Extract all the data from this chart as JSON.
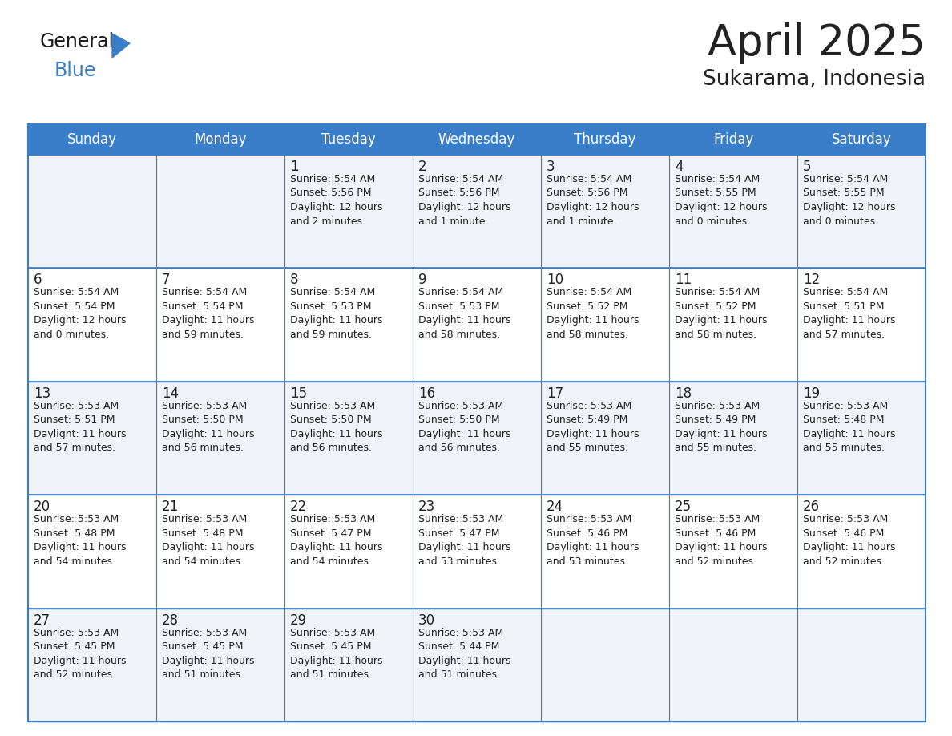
{
  "title": "April 2025",
  "subtitle": "Sukarama, Indonesia",
  "header_bg_color": "#3A7DC9",
  "header_text_color": "#FFFFFF",
  "cell_bg_color_odd": "#F0F4F8",
  "cell_bg_color_even": "#FFFFFF",
  "border_color": "#3A7DC9",
  "row_divider_color": "#3A7DC9",
  "text_color": "#222222",
  "days_of_week": [
    "Sunday",
    "Monday",
    "Tuesday",
    "Wednesday",
    "Thursday",
    "Friday",
    "Saturday"
  ],
  "calendar_data": [
    [
      {
        "day": "",
        "sunrise": "",
        "sunset": "",
        "daylight": ""
      },
      {
        "day": "",
        "sunrise": "",
        "sunset": "",
        "daylight": ""
      },
      {
        "day": "1",
        "sunrise": "5:54 AM",
        "sunset": "5:56 PM",
        "daylight": "12 hours and 2 minutes."
      },
      {
        "day": "2",
        "sunrise": "5:54 AM",
        "sunset": "5:56 PM",
        "daylight": "12 hours and 1 minute."
      },
      {
        "day": "3",
        "sunrise": "5:54 AM",
        "sunset": "5:56 PM",
        "daylight": "12 hours and 1 minute."
      },
      {
        "day": "4",
        "sunrise": "5:54 AM",
        "sunset": "5:55 PM",
        "daylight": "12 hours and 0 minutes."
      },
      {
        "day": "5",
        "sunrise": "5:54 AM",
        "sunset": "5:55 PM",
        "daylight": "12 hours and 0 minutes."
      }
    ],
    [
      {
        "day": "6",
        "sunrise": "5:54 AM",
        "sunset": "5:54 PM",
        "daylight": "12 hours and 0 minutes."
      },
      {
        "day": "7",
        "sunrise": "5:54 AM",
        "sunset": "5:54 PM",
        "daylight": "11 hours and 59 minutes."
      },
      {
        "day": "8",
        "sunrise": "5:54 AM",
        "sunset": "5:53 PM",
        "daylight": "11 hours and 59 minutes."
      },
      {
        "day": "9",
        "sunrise": "5:54 AM",
        "sunset": "5:53 PM",
        "daylight": "11 hours and 58 minutes."
      },
      {
        "day": "10",
        "sunrise": "5:54 AM",
        "sunset": "5:52 PM",
        "daylight": "11 hours and 58 minutes."
      },
      {
        "day": "11",
        "sunrise": "5:54 AM",
        "sunset": "5:52 PM",
        "daylight": "11 hours and 58 minutes."
      },
      {
        "day": "12",
        "sunrise": "5:54 AM",
        "sunset": "5:51 PM",
        "daylight": "11 hours and 57 minutes."
      }
    ],
    [
      {
        "day": "13",
        "sunrise": "5:53 AM",
        "sunset": "5:51 PM",
        "daylight": "11 hours and 57 minutes."
      },
      {
        "day": "14",
        "sunrise": "5:53 AM",
        "sunset": "5:50 PM",
        "daylight": "11 hours and 56 minutes."
      },
      {
        "day": "15",
        "sunrise": "5:53 AM",
        "sunset": "5:50 PM",
        "daylight": "11 hours and 56 minutes."
      },
      {
        "day": "16",
        "sunrise": "5:53 AM",
        "sunset": "5:50 PM",
        "daylight": "11 hours and 56 minutes."
      },
      {
        "day": "17",
        "sunrise": "5:53 AM",
        "sunset": "5:49 PM",
        "daylight": "11 hours and 55 minutes."
      },
      {
        "day": "18",
        "sunrise": "5:53 AM",
        "sunset": "5:49 PM",
        "daylight": "11 hours and 55 minutes."
      },
      {
        "day": "19",
        "sunrise": "5:53 AM",
        "sunset": "5:48 PM",
        "daylight": "11 hours and 55 minutes."
      }
    ],
    [
      {
        "day": "20",
        "sunrise": "5:53 AM",
        "sunset": "5:48 PM",
        "daylight": "11 hours and 54 minutes."
      },
      {
        "day": "21",
        "sunrise": "5:53 AM",
        "sunset": "5:48 PM",
        "daylight": "11 hours and 54 minutes."
      },
      {
        "day": "22",
        "sunrise": "5:53 AM",
        "sunset": "5:47 PM",
        "daylight": "11 hours and 54 minutes."
      },
      {
        "day": "23",
        "sunrise": "5:53 AM",
        "sunset": "5:47 PM",
        "daylight": "11 hours and 53 minutes."
      },
      {
        "day": "24",
        "sunrise": "5:53 AM",
        "sunset": "5:46 PM",
        "daylight": "11 hours and 53 minutes."
      },
      {
        "day": "25",
        "sunrise": "5:53 AM",
        "sunset": "5:46 PM",
        "daylight": "11 hours and 52 minutes."
      },
      {
        "day": "26",
        "sunrise": "5:53 AM",
        "sunset": "5:46 PM",
        "daylight": "11 hours and 52 minutes."
      }
    ],
    [
      {
        "day": "27",
        "sunrise": "5:53 AM",
        "sunset": "5:45 PM",
        "daylight": "11 hours and 52 minutes."
      },
      {
        "day": "28",
        "sunrise": "5:53 AM",
        "sunset": "5:45 PM",
        "daylight": "11 hours and 51 minutes."
      },
      {
        "day": "29",
        "sunrise": "5:53 AM",
        "sunset": "5:45 PM",
        "daylight": "11 hours and 51 minutes."
      },
      {
        "day": "30",
        "sunrise": "5:53 AM",
        "sunset": "5:44 PM",
        "daylight": "11 hours and 51 minutes."
      },
      {
        "day": "",
        "sunrise": "",
        "sunset": "",
        "daylight": ""
      },
      {
        "day": "",
        "sunrise": "",
        "sunset": "",
        "daylight": ""
      },
      {
        "day": "",
        "sunrise": "",
        "sunset": "",
        "daylight": ""
      }
    ]
  ],
  "logo_color_general": "#1a1a1a",
  "logo_color_blue": "#3A7DC9",
  "title_fontsize": 38,
  "subtitle_fontsize": 19,
  "header_fontsize": 12,
  "day_num_fontsize": 12,
  "cell_text_fontsize": 9
}
